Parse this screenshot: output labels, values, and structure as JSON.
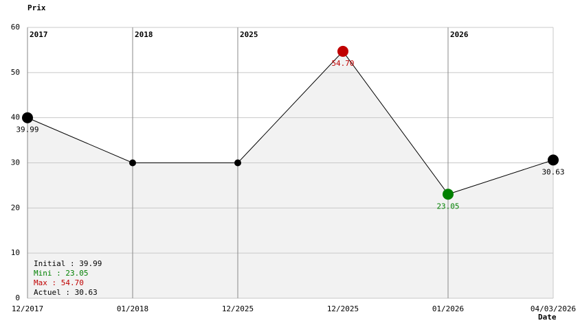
{
  "chart_data": {
    "type": "line",
    "ylabel": "Prix",
    "xlabel": "Date",
    "categories": [
      "12/2017",
      "01/2018",
      "12/2025",
      "12/2025",
      "01/2026",
      "04/03/2026"
    ],
    "values": [
      39.99,
      30,
      30,
      54.7,
      23.05,
      30.63
    ],
    "value_labels": [
      "39.99",
      null,
      null,
      "54.70",
      "23.05",
      "30.63"
    ],
    "year_labels": [
      "2017",
      "2018",
      "2025",
      null,
      "2026",
      null
    ],
    "color": "#000000",
    "area_color": "#f2f2f2",
    "max_color": "#c00000",
    "min_color": "#008000",
    "ylim": [
      0,
      60
    ],
    "yticks": [
      0,
      10,
      20,
      30,
      40,
      50,
      60
    ],
    "grid": true,
    "summary": [
      {
        "text": "Initial : 39.99",
        "color": "#000000"
      },
      {
        "text": "Mini : 23.05",
        "color": "#008000"
      },
      {
        "text": "Max : 54.70",
        "color": "#c00000"
      },
      {
        "text": "Actuel : 30.63",
        "color": "#000000"
      }
    ]
  }
}
